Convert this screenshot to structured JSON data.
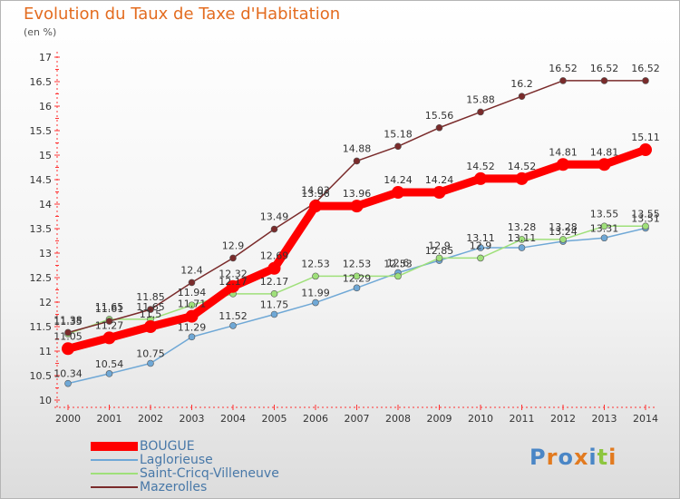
{
  "chart_data": {
    "type": "line",
    "title": "Evolution du Taux de Taxe d'Habitation",
    "subtitle": "(en %)",
    "x": [
      "2000",
      "2001",
      "2002",
      "2003",
      "2004",
      "2005",
      "2006",
      "2007",
      "2008",
      "2009",
      "2010",
      "2011",
      "2012",
      "2013",
      "2014"
    ],
    "ylim": [
      10,
      17
    ],
    "yticks": [
      "10",
      "10.5",
      "11",
      "11.5",
      "12",
      "12.5",
      "13",
      "13.5",
      "14",
      "14.5",
      "15",
      "15.5",
      "16",
      "16.5",
      "17"
    ],
    "grid": false,
    "legend_position": "bottom-left",
    "series": [
      {
        "name": "BOUGUE",
        "color": "#ff0000",
        "values": [
          11.05,
          11.27,
          11.5,
          11.71,
          12.32,
          12.69,
          13.96,
          13.96,
          14.24,
          14.24,
          14.52,
          14.52,
          14.81,
          14.81,
          15.11
        ]
      },
      {
        "name": "Laglorieuse",
        "color": "#6fa8d6",
        "values": [
          10.34,
          10.54,
          10.75,
          11.29,
          11.52,
          11.75,
          11.99,
          12.29,
          12.6,
          12.85,
          13.11,
          13.11,
          13.24,
          13.31,
          13.51
        ]
      },
      {
        "name": "Saint-Cricq-Villeneuve",
        "color": "#9fe07a",
        "values": [
          11.35,
          11.65,
          11.65,
          11.94,
          12.17,
          12.17,
          12.53,
          12.53,
          12.53,
          12.9,
          12.9,
          13.28,
          13.28,
          13.55,
          13.55
        ]
      },
      {
        "name": "Mazerolles",
        "color": "#7a2b2b",
        "values": [
          11.38,
          11.61,
          11.85,
          12.4,
          12.9,
          13.49,
          14.03,
          14.88,
          15.18,
          15.56,
          15.88,
          16.2,
          16.52,
          16.52,
          16.52
        ]
      }
    ]
  },
  "logo": {
    "text": "Proxiti",
    "colors": [
      "#4a86c6",
      "#e27a1f",
      "#4a86c6",
      "#e27a1f",
      "#4a86c6",
      "#8dc63f",
      "#e27a1f"
    ]
  }
}
